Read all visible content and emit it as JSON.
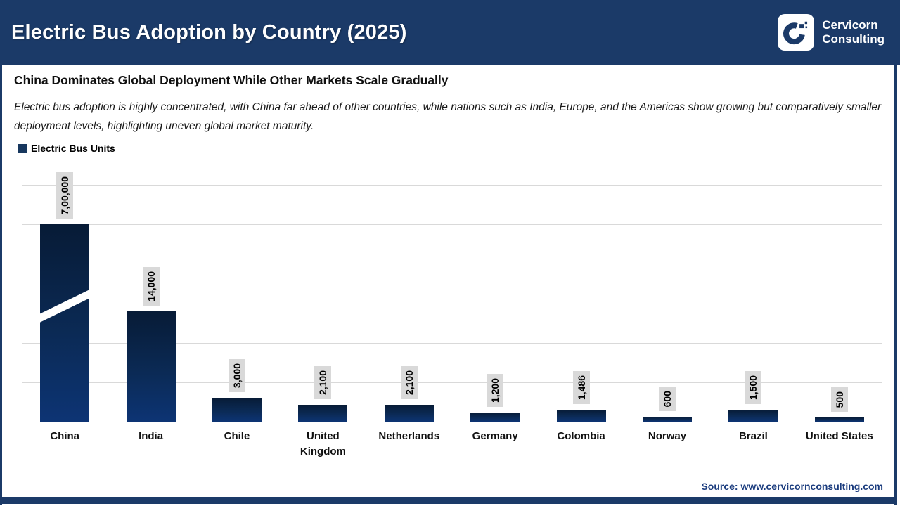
{
  "header": {
    "title": "Electric Bus Adoption by Country (2025)",
    "logo": {
      "line1": "Cervicorn",
      "line2": "Consulting"
    }
  },
  "content": {
    "subtitle": "China Dominates Global Deployment While Other Markets Scale Gradually",
    "description": "Electric bus adoption is highly concentrated, with China far ahead of other countries, while nations such as India, Europe, and the Americas show growing but comparatively smaller deployment levels, highlighting uneven global market maturity.",
    "legend_label": "Electric Bus Units"
  },
  "chart_data": {
    "type": "bar",
    "title": "Electric Bus Adoption by Country (2025)",
    "series_name": "Electric Bus Units",
    "categories": [
      "China",
      "India",
      "Chile",
      "United Kingdom",
      "Netherlands",
      "Germany",
      "Colombia",
      "Norway",
      "Brazil",
      "United States"
    ],
    "values": [
      700000,
      14000,
      3000,
      2100,
      2100,
      1200,
      1486,
      600,
      1500,
      500
    ],
    "value_labels": [
      "7,00,000",
      "14,000",
      "3,000",
      "2,100",
      "2,100",
      "1,200",
      "1,486",
      "600",
      "1,500",
      "500"
    ],
    "xlabel": "",
    "ylabel": "",
    "ylim": [
      0,
      30000
    ],
    "gridline_step": 5000,
    "grid": "horizontal",
    "y_axis_tick_labels": "hidden",
    "legend_position": "top-left",
    "axis_break": {
      "category": "China",
      "displayed_as_value": 25000,
      "marker": "white diagonal slash across bar"
    },
    "colors": {
      "bar_gradient_top": "#071b36",
      "bar_gradient_bottom": "#0d3474",
      "value_label_background": "#d9d9d9",
      "gridline": "#d9d9d9"
    }
  },
  "footer": {
    "source": "Source: www.cervicornconsulting.com"
  },
  "colors": {
    "navy": "#1b3a68",
    "legend_swatch": "#17375e",
    "source_text": "#1b3c7e"
  }
}
